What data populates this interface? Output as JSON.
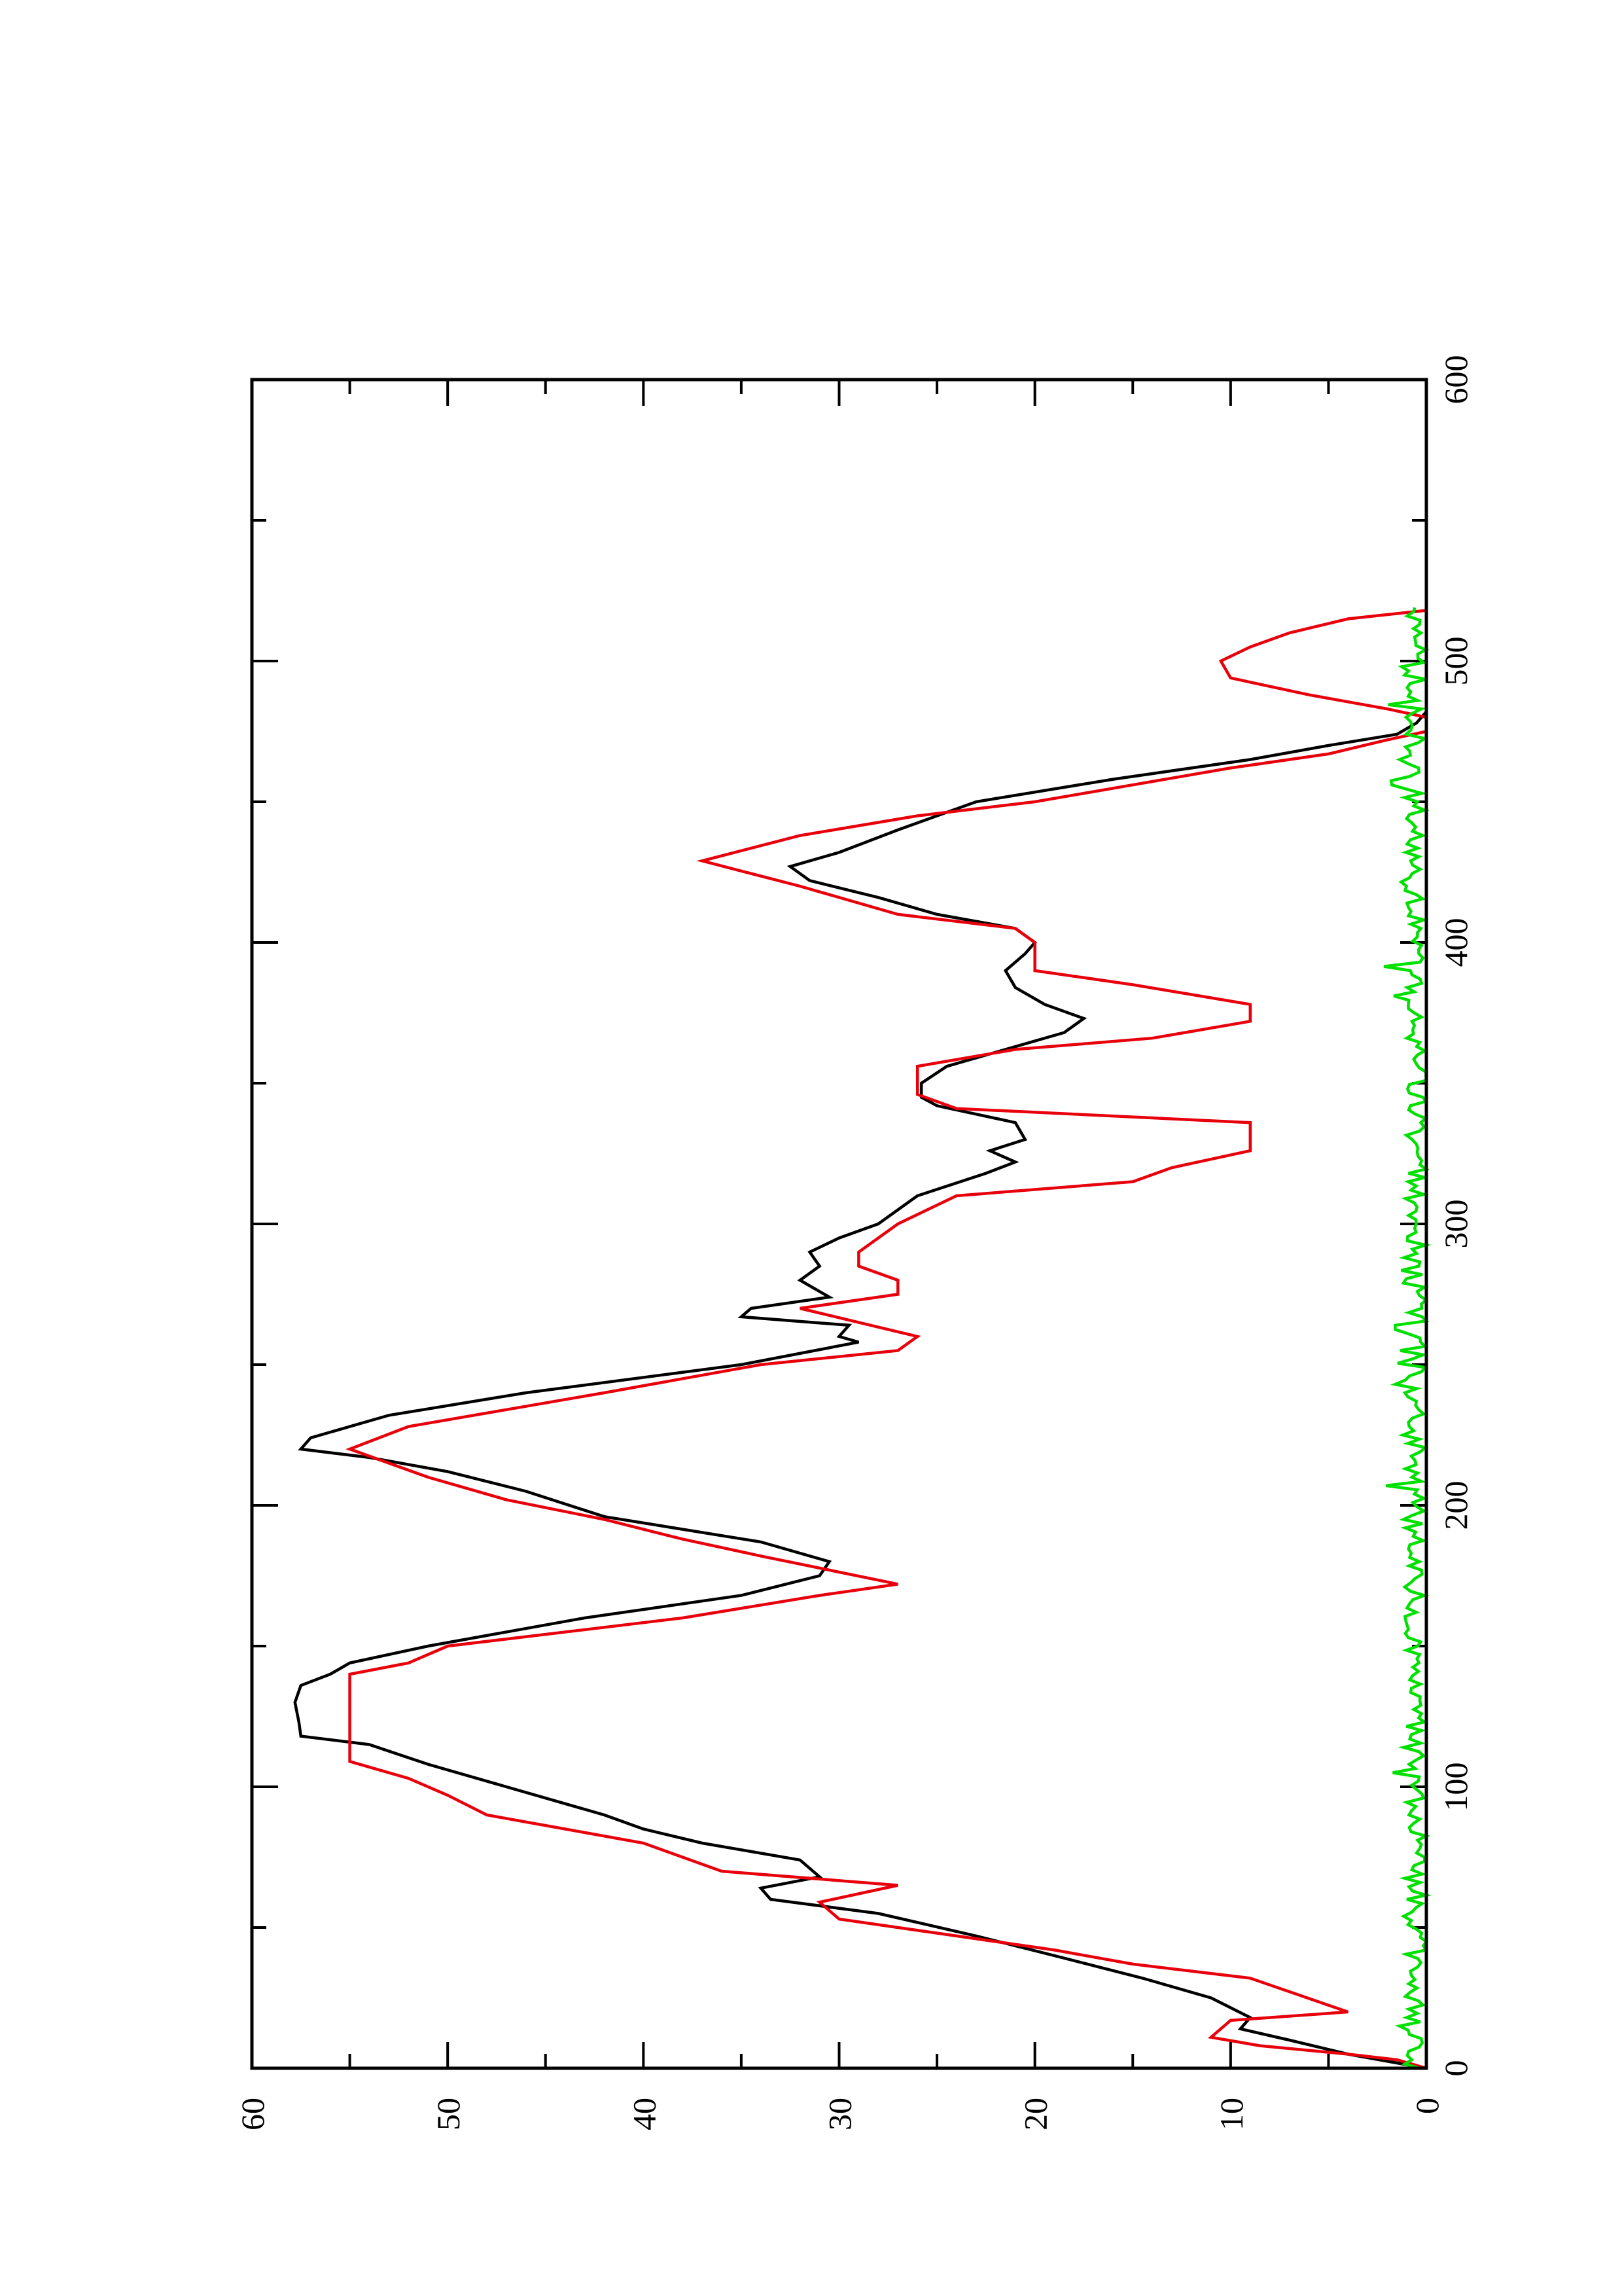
{
  "chart_data": {
    "type": "line",
    "orientation": "rotated 90 degrees counter-clockwise (x axis vertical on the right, y axis horizontal at the bottom)",
    "xlim": [
      0,
      600
    ],
    "ylim": [
      0,
      60
    ],
    "x_ticks": [
      "0",
      "100",
      "200",
      "300",
      "400",
      "500",
      "600"
    ],
    "y_ticks": [
      "0",
      "10",
      "20",
      "30",
      "40",
      "50",
      "60"
    ],
    "grid": false,
    "legend": "none",
    "series": [
      {
        "color": "#000000",
        "style": "line",
        "x": [
          0,
          5,
          10,
          14,
          18,
          25,
          32,
          40,
          47,
          55,
          60,
          64,
          68,
          74,
          80,
          85,
          90,
          100,
          108,
          115,
          118,
          123,
          130,
          136,
          140,
          144,
          150,
          160,
          168,
          175,
          180,
          187,
          196,
          205,
          212,
          217,
          220,
          224,
          232,
          240,
          250,
          258,
          260,
          264,
          267,
          270,
          274,
          280,
          285,
          290,
          295,
          300,
          310,
          318,
          322,
          326,
          330,
          336,
          342,
          345,
          350,
          356,
          362,
          368,
          373,
          378,
          384,
          390,
          396,
          400,
          405,
          410,
          416,
          422,
          427,
          432,
          440,
          450,
          458,
          465,
          470,
          474,
          478,
          482
        ],
        "values": [
          0,
          4,
          7,
          9.5,
          9,
          11,
          14.5,
          19,
          23,
          28,
          33.5,
          34,
          31,
          32,
          37,
          40,
          42,
          47,
          51,
          54,
          57.5,
          57.6,
          57.8,
          57.5,
          56,
          55,
          51,
          43,
          35,
          31,
          30.5,
          34,
          42,
          46,
          50,
          54,
          57.5,
          57,
          53,
          46,
          35,
          29,
          30,
          29.5,
          35,
          34.5,
          30.5,
          32,
          31,
          31.5,
          30,
          28,
          26,
          22.5,
          21,
          22.3,
          20.5,
          21,
          25,
          25.8,
          25.8,
          24.5,
          21.5,
          18.5,
          17.5,
          19.5,
          21,
          21.5,
          20.5,
          20,
          21,
          25,
          28,
          31.5,
          32.5,
          30,
          27,
          23,
          16,
          9,
          5,
          1.5,
          0.5,
          0
        ]
      },
      {
        "color": "#e8000b",
        "style": "step",
        "x": [
          0,
          3,
          5,
          8,
          11,
          17,
          20,
          32,
          37,
          42,
          47,
          53,
          59,
          65,
          70,
          80,
          85,
          90,
          97,
          103,
          109,
          115,
          118,
          130,
          140,
          144,
          150,
          160,
          168,
          172,
          182,
          188,
          195,
          202,
          210,
          215,
          220,
          228,
          240,
          250,
          255,
          260,
          270,
          275,
          280,
          285,
          290,
          300,
          310,
          315,
          320,
          326,
          336,
          341,
          346,
          352,
          356,
          362,
          366,
          372,
          378,
          385,
          390,
          400,
          405,
          410,
          420,
          429,
          438,
          445,
          450,
          456,
          462,
          467,
          472,
          475,
          480,
          483,
          488,
          494,
          500,
          505,
          510,
          515,
          518
        ],
        "values": [
          0,
          1.5,
          4,
          8.5,
          11,
          10,
          4,
          9,
          15,
          19,
          24,
          30,
          31,
          27,
          36,
          40,
          44,
          48,
          50,
          52,
          55,
          55,
          55,
          55,
          55,
          52,
          50,
          38,
          31,
          27,
          34,
          38,
          42,
          47,
          51,
          53,
          55,
          52,
          42,
          34,
          27,
          26,
          32,
          27,
          27,
          29,
          29,
          27,
          24,
          15,
          13,
          9,
          9,
          24,
          26,
          26,
          26,
          21,
          14,
          9,
          9,
          15,
          20,
          20,
          21,
          27,
          32,
          37,
          32,
          26,
          20,
          15,
          10,
          5,
          2,
          0,
          0,
          2,
          6,
          10,
          10.5,
          9,
          7,
          4,
          0
        ]
      },
      {
        "color": "#00e000",
        "style": "noise",
        "x_range": [
          0,
          520
        ],
        "y_range": [
          0,
          2.5
        ]
      }
    ]
  }
}
